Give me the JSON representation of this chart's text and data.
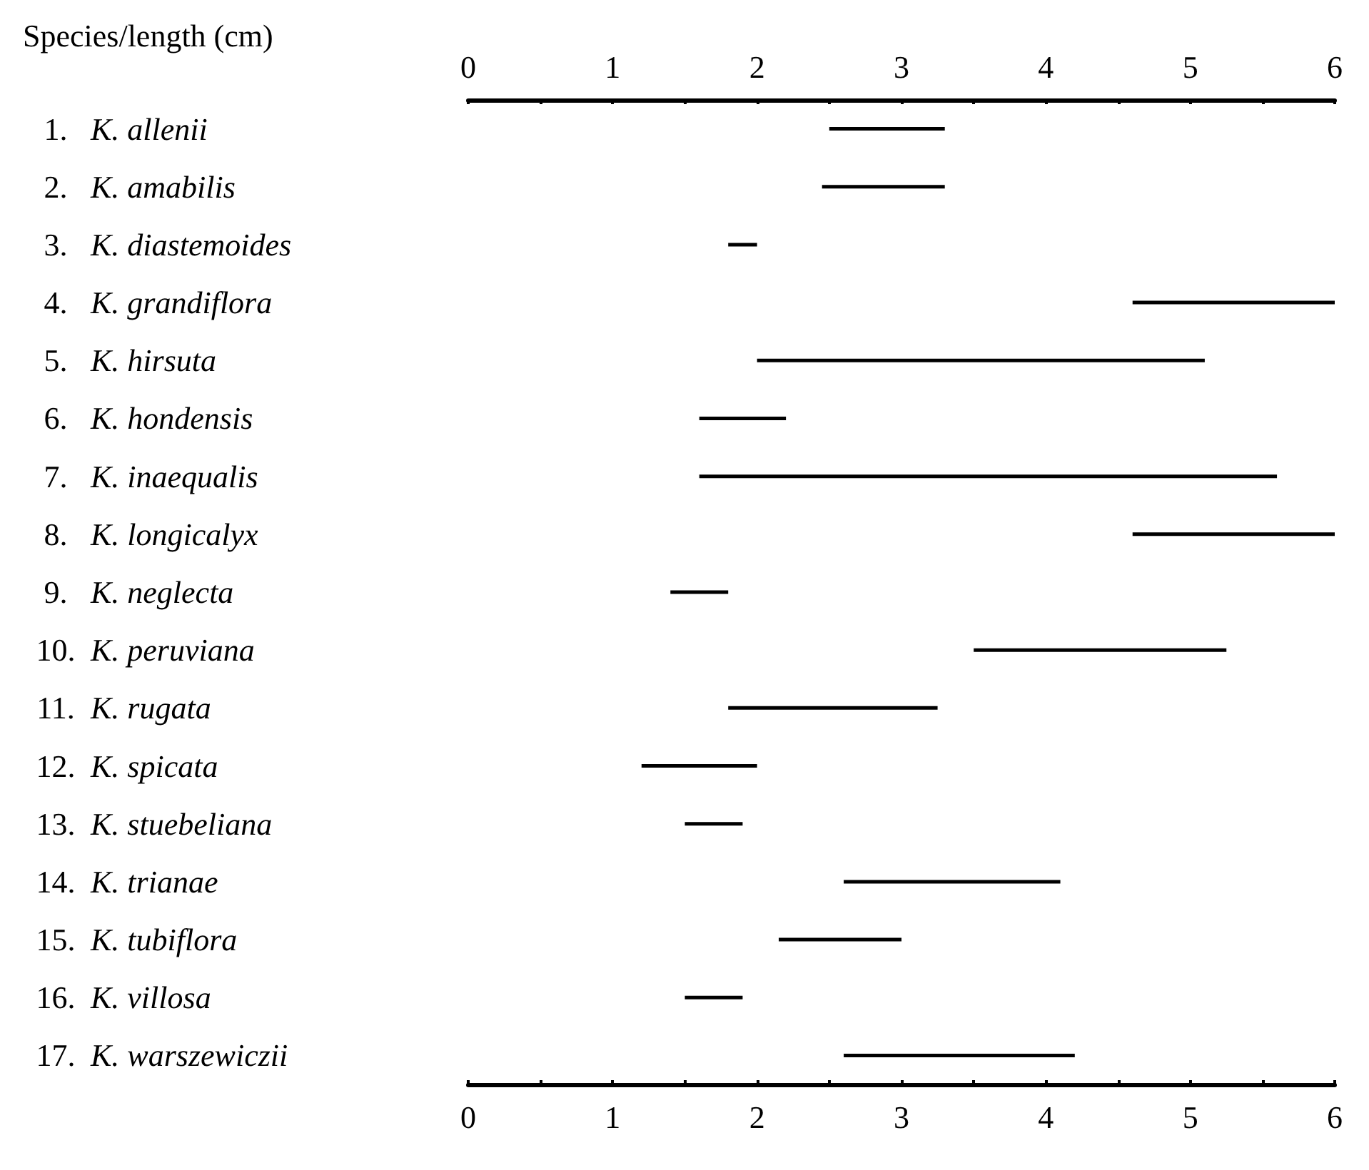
{
  "chart_data": {
    "type": "bar",
    "orientation": "horizontal",
    "xlabel": "Species/length (cm)",
    "categories": [
      "1. K. allenii",
      "2. K. amabilis",
      "3. K. diastemoides",
      "4. K. grandiflora",
      "5. K. hirsuta",
      "6. K. hondensis",
      "7. K. inaequalis",
      "8. K. longicalyx",
      "9. K. neglecta",
      "10. K. peruviana",
      "11. K. rugata",
      "12. K. spicata",
      "13. K. stuebeliana",
      "14. K. trianae",
      "15. K. tubiflora",
      "16. K. villosa",
      "17. K. warszewiczii"
    ],
    "series": [
      {
        "color": "#000000",
        "base": [
          2.5,
          2.45,
          1.8,
          4.6,
          2.0,
          1.6,
          1.6,
          4.6,
          1.4,
          3.5,
          1.8,
          1.2,
          1.5,
          2.6,
          2.15,
          1.5,
          2.6
        ],
        "values": [
          0.8,
          0.85,
          0.2,
          1.4,
          3.1,
          0.6,
          4.0,
          1.4,
          0.4,
          1.75,
          1.45,
          0.8,
          0.4,
          1.5,
          0.85,
          0.4,
          1.6
        ]
      }
    ],
    "xlim": [
      0,
      6
    ],
    "xticks": [
      0,
      {
        "value": 0.5,
        "label": null
      },
      1,
      {
        "value": 1.5,
        "label": null
      },
      2,
      {
        "value": 2.5,
        "label": null
      },
      3,
      {
        "value": 3.5,
        "label": null
      },
      4,
      {
        "value": 4.5,
        "label": null
      },
      5,
      {
        "value": 5.5,
        "label": null
      },
      6
    ],
    "x2lim": [
      0,
      6
    ],
    "x2ticks": [
      0,
      {
        "value": 0.5,
        "label": null
      },
      1,
      {
        "value": 1.5,
        "label": null
      },
      2,
      {
        "value": 2.5,
        "label": null
      },
      3,
      {
        "value": 3.5,
        "label": null
      },
      4,
      {
        "value": 4.5,
        "label": null
      },
      5,
      {
        "value": 5.5,
        "label": null
      },
      6
    ],
    "grid": false
  }
}
